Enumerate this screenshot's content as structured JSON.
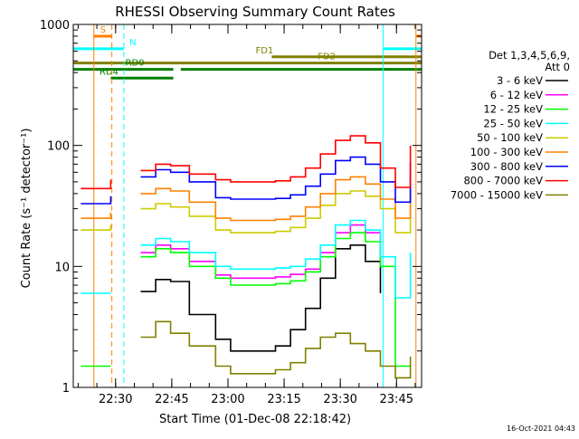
{
  "chart_data": {
    "type": "line",
    "title": "RHESSI Observing Summary Count Rates",
    "ylabel": "Count Rate (s⁻¹ detector⁻¹)",
    "xlabel": "Start Time (01-Dec-08 22:18:42)",
    "scale": "log",
    "ylim": [
      1,
      1000
    ],
    "xlim_minutes": [
      0,
      93
    ],
    "x_ticks": [
      {
        "label": "22:30",
        "minute": 11.3
      },
      {
        "label": "22:45",
        "minute": 26.3
      },
      {
        "label": "23:00",
        "minute": 41.3
      },
      {
        "label": "23:15",
        "minute": 56.3
      },
      {
        "label": "23:30",
        "minute": 71.3
      },
      {
        "label": "23:45",
        "minute": 86.3
      }
    ],
    "y_ticks": [
      {
        "label": "1",
        "value": 1
      },
      {
        "label": "10",
        "value": 10
      },
      {
        "label": "100",
        "value": 100
      },
      {
        "label": "1000",
        "value": 1000
      }
    ],
    "grid": false,
    "legend": {
      "placement": "right",
      "header": [
        "Det 1,3,4,5,6,9,",
        "Att 0"
      ]
    },
    "series": [
      {
        "name": "3 - 6 keV",
        "color": "#000000",
        "x": [
          2,
          10,
          14,
          18,
          22,
          26,
          31,
          38,
          42,
          46,
          50,
          54,
          58,
          62,
          66,
          70,
          74,
          78,
          82,
          86,
          90
        ],
        "values": [
          null,
          null,
          null,
          6.2,
          7.8,
          7.5,
          4,
          2.5,
          2,
          2,
          2,
          2.2,
          3,
          4.5,
          8,
          14,
          15,
          11,
          6,
          null,
          null
        ]
      },
      {
        "name": "6 - 12 keV",
        "color": "#ff00ff",
        "x": [
          2,
          10,
          14,
          18,
          22,
          26,
          31,
          38,
          42,
          46,
          50,
          54,
          58,
          62,
          66,
          70,
          74,
          78,
          82,
          86,
          90
        ],
        "values": [
          null,
          null,
          null,
          13,
          15,
          14,
          11,
          8.5,
          8,
          8,
          8,
          8.2,
          8.6,
          9.5,
          13,
          19,
          22,
          19,
          11,
          null,
          null
        ]
      },
      {
        "name": "12 - 25 keV",
        "color": "#00ff00",
        "x": [
          2,
          10,
          14,
          18,
          22,
          26,
          31,
          38,
          42,
          46,
          50,
          54,
          58,
          62,
          66,
          70,
          74,
          78,
          82,
          86,
          90
        ],
        "values": [
          1.5,
          1.5,
          null,
          12,
          14,
          13,
          10,
          8,
          7,
          7,
          7,
          7.2,
          7.6,
          9,
          12,
          17,
          19,
          16,
          10,
          1.5,
          1.5
        ]
      },
      {
        "name": "25 - 50 keV",
        "color": "#00ffff",
        "x": [
          2,
          10,
          14,
          18,
          22,
          26,
          31,
          38,
          42,
          46,
          50,
          54,
          58,
          62,
          66,
          70,
          74,
          78,
          82,
          86,
          90
        ],
        "values": [
          6,
          6,
          null,
          15,
          17,
          16,
          13,
          10,
          9.5,
          9.5,
          9.5,
          9.7,
          10,
          11.5,
          15,
          22,
          24,
          20,
          12,
          5.5,
          13
        ]
      },
      {
        "name": "50 - 100 keV",
        "color": "#cccc00",
        "x": [
          2,
          10,
          14,
          18,
          22,
          26,
          31,
          38,
          42,
          46,
          50,
          54,
          58,
          62,
          66,
          70,
          74,
          78,
          82,
          86,
          90
        ],
        "values": [
          20,
          22,
          null,
          30,
          33,
          31,
          26,
          20,
          19,
          19,
          19,
          19.5,
          21,
          25,
          32,
          40,
          42,
          38,
          30,
          19,
          40
        ]
      },
      {
        "name": "100 - 300 keV",
        "color": "#ff8000",
        "x": [
          2,
          10,
          14,
          18,
          22,
          26,
          31,
          38,
          42,
          46,
          50,
          54,
          58,
          62,
          66,
          70,
          74,
          78,
          82,
          86,
          90
        ],
        "values": [
          25,
          28,
          null,
          40,
          44,
          42,
          34,
          25,
          24,
          24,
          24,
          24.5,
          26,
          31,
          40,
          52,
          55,
          48,
          36,
          25,
          55
        ]
      },
      {
        "name": "300 - 800 keV",
        "color": "#0000ff",
        "x": [
          2,
          10,
          14,
          18,
          22,
          26,
          31,
          38,
          42,
          46,
          50,
          54,
          58,
          62,
          66,
          70,
          74,
          78,
          82,
          86,
          90
        ],
        "values": [
          33,
          38,
          null,
          55,
          63,
          60,
          50,
          37,
          36,
          36,
          36,
          36.5,
          39,
          46,
          58,
          75,
          80,
          70,
          50,
          34,
          72
        ]
      },
      {
        "name": "800 - 7000 keV",
        "color": "#ff0000",
        "x": [
          2,
          10,
          14,
          18,
          22,
          26,
          31,
          38,
          42,
          46,
          50,
          54,
          58,
          62,
          66,
          70,
          74,
          78,
          82,
          86,
          90
        ],
        "values": [
          44,
          52,
          null,
          62,
          70,
          68,
          58,
          52,
          50,
          50,
          50,
          51,
          55,
          65,
          85,
          110,
          120,
          105,
          65,
          45,
          100
        ]
      },
      {
        "name": "7000 - 15000 keV",
        "color": "#808000",
        "x": [
          2,
          10,
          14,
          18,
          22,
          26,
          31,
          38,
          42,
          46,
          50,
          54,
          58,
          62,
          66,
          70,
          74,
          78,
          82,
          86,
          90
        ],
        "values": [
          null,
          null,
          null,
          2.6,
          3.5,
          2.8,
          2.2,
          1.5,
          1.3,
          1.3,
          1.3,
          1.4,
          1.6,
          2.1,
          2.6,
          2.8,
          2.3,
          2.0,
          1.5,
          1.2,
          1.8
        ]
      }
    ],
    "flag_bars": [
      {
        "label": "S",
        "color": "#ff8000",
        "value": 800,
        "segments": [
          [
            5.5,
            10.3
          ],
          [
            91.5,
            93
          ]
        ]
      },
      {
        "label": "N",
        "color": "#00ffff",
        "value": 630,
        "segments": [
          [
            0,
            13.5
          ],
          [
            82.7,
            93
          ]
        ]
      },
      {
        "label": "FD1",
        "color": "#808000",
        "value": 540,
        "segments": [
          [
            53,
            93
          ]
        ]
      },
      {
        "label": "FD2",
        "color": "#808000",
        "value": 480,
        "segments": [
          [
            0,
            93
          ]
        ]
      },
      {
        "label": "RD0",
        "color": "#008000",
        "value": 425,
        "segments": [
          [
            0,
            26.7
          ],
          [
            28.7,
            93
          ]
        ]
      },
      {
        "label": "RD4",
        "color": "#008000",
        "value": 360,
        "segments": [
          [
            10,
            26.7
          ]
        ]
      }
    ],
    "event_lines": [
      {
        "minute": 0,
        "color": "#00ffff",
        "dashed": false
      },
      {
        "minute": 5.5,
        "color": "#ff8000",
        "dashed": false
      },
      {
        "minute": 10.3,
        "color": "#ff8000",
        "dashed": true
      },
      {
        "minute": 13.5,
        "color": "#00ffff",
        "dashed": true
      },
      {
        "minute": 82.7,
        "color": "#00ffff",
        "dashed": false
      },
      {
        "minute": 91.5,
        "color": "#ff8000",
        "dashed": false
      },
      {
        "minute": 93,
        "color": "#00ffff",
        "dashed": true
      }
    ],
    "timestamp": "16-Oct-2021 04:43"
  }
}
